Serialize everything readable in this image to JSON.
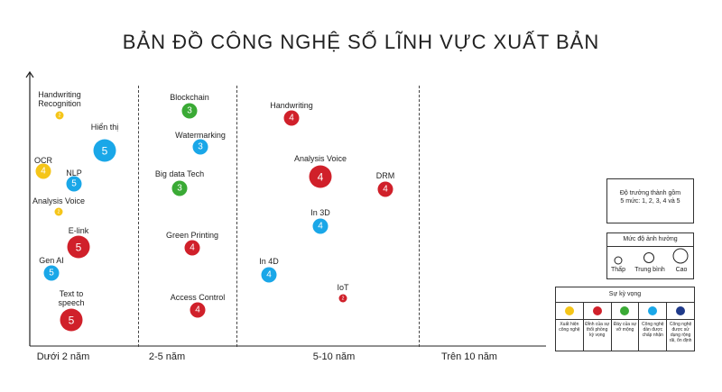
{
  "title": "BẢN ĐỒ CÔNG NGHỆ SỐ LĨNH VỰC XUẤT BẢN",
  "colors": {
    "yellow": "#f5c518",
    "red": "#d0202a",
    "green": "#3aaa35",
    "blue": "#1aa7e8",
    "navy": "#1f3a8a"
  },
  "periods": [
    "Dưới 2 năm",
    "2-5 năm",
    "5-10 năm",
    "Trên 10 năm"
  ],
  "items": [
    {
      "label": "Handwriting Recognition",
      "level": "2",
      "color": "yellow",
      "impact": "low",
      "period": "Dưới 2 năm"
    },
    {
      "label": "Hiển thị",
      "level": "5",
      "color": "blue",
      "impact": "high",
      "period": "Dưới 2 năm"
    },
    {
      "label": "OCR",
      "level": "4",
      "color": "yellow",
      "impact": "medium",
      "period": "Dưới 2 năm"
    },
    {
      "label": "NLP",
      "level": "5",
      "color": "blue",
      "impact": "medium",
      "period": "Dưới 2 năm"
    },
    {
      "label": "Analysis Voice",
      "level": "2",
      "color": "yellow",
      "impact": "low",
      "period": "Dưới 2 năm"
    },
    {
      "label": "E-link",
      "level": "5",
      "color": "red",
      "impact": "high",
      "period": "Dưới 2 năm"
    },
    {
      "label": "Gen AI",
      "level": "5",
      "color": "blue",
      "impact": "medium",
      "period": "Dưới 2 năm"
    },
    {
      "label": "Text to speech",
      "level": "5",
      "color": "red",
      "impact": "high",
      "period": "Dưới 2 năm"
    },
    {
      "label": "Blockchain",
      "level": "3",
      "color": "green",
      "impact": "medium",
      "period": "2-5 năm"
    },
    {
      "label": "Watermarking",
      "level": "3",
      "color": "blue",
      "impact": "medium",
      "period": "2-5 năm"
    },
    {
      "label": "Big data Tech",
      "level": "3",
      "color": "green",
      "impact": "medium",
      "period": "2-5 năm"
    },
    {
      "label": "Green Printing",
      "level": "4",
      "color": "red",
      "impact": "medium",
      "period": "2-5 năm"
    },
    {
      "label": "Access Control",
      "level": "4",
      "color": "red",
      "impact": "medium",
      "period": "2-5 năm"
    },
    {
      "label": "Handwriting",
      "level": "4",
      "color": "red",
      "impact": "medium",
      "period": "5-10 năm"
    },
    {
      "label": "Analysis Voice",
      "level": "4",
      "color": "red",
      "impact": "high",
      "period": "5-10 năm"
    },
    {
      "label": "DRM",
      "level": "4",
      "color": "red",
      "impact": "medium",
      "period": "5-10 năm"
    },
    {
      "label": "In 3D",
      "level": "4",
      "color": "blue",
      "impact": "medium",
      "period": "5-10 năm"
    },
    {
      "label": "In 4D",
      "level": "4",
      "color": "blue",
      "impact": "medium",
      "period": "5-10 năm"
    },
    {
      "label": "IoT",
      "level": "2",
      "color": "red",
      "impact": "low",
      "period": "5-10 năm"
    }
  ],
  "legend": {
    "maturity": "Độ trưởng thành gồm 5 mức: 1, 2, 3, 4 và 5",
    "impact_title": "Mức độ ảnh hưởng",
    "impact": [
      "Thấp",
      "Trung bình",
      "Cao"
    ],
    "expect_title": "Sự kỳ vọng",
    "expect": [
      {
        "color": "yellow",
        "text": "Xuất hiện công nghệ"
      },
      {
        "color": "red",
        "text": "Đỉnh của sự thổi phồng kỳ vọng"
      },
      {
        "color": "green",
        "text": "Đáy của sự vỡ mộng"
      },
      {
        "color": "blue",
        "text": "Công nghệ dần được chấp nhận"
      },
      {
        "color": "navy",
        "text": "Công nghệ được sử dụng rộng rãi, ổn định"
      }
    ]
  }
}
